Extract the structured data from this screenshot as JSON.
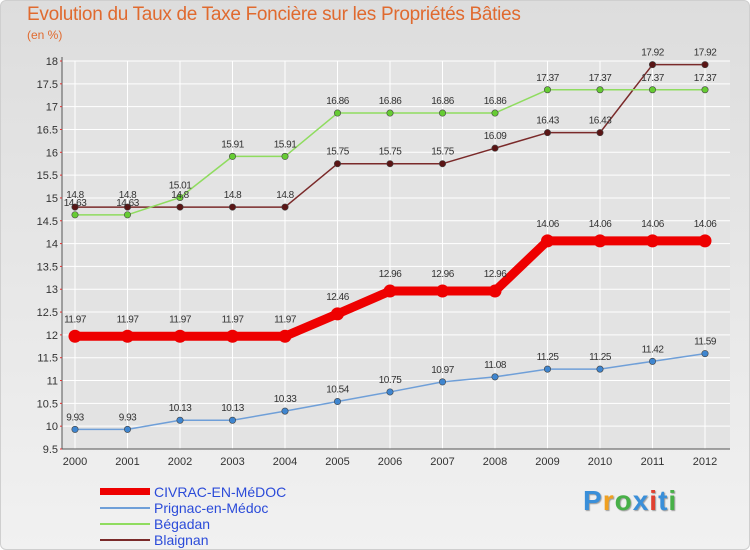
{
  "header": {
    "title": "Evolution du Taux de Taxe Foncière sur les Propriétés Bâties",
    "subtitle": "(en %)"
  },
  "colors": {
    "title": "#e06a2f",
    "legend_text": "#2b4bd9",
    "grid": "#ffffff",
    "axis_tick": "#e03030"
  },
  "chart_data": {
    "type": "line",
    "title": "Evolution du Taux de Taxe Foncière sur les Propriétés Bâties",
    "ylabel": "(en %)",
    "xlabel": "",
    "categories": [
      "2000",
      "2001",
      "2002",
      "2003",
      "2004",
      "2005",
      "2006",
      "2007",
      "2008",
      "2009",
      "2010",
      "2011",
      "2012"
    ],
    "ylim": [
      9.5,
      18
    ],
    "yticks": [
      "9.5",
      "10",
      "10.5",
      "11",
      "11.5",
      "12",
      "12.5",
      "13",
      "13.5",
      "14",
      "14.5",
      "15",
      "15.5",
      "16",
      "16.5",
      "17",
      "17.5",
      "18"
    ],
    "grid": true,
    "series": [
      {
        "name": "CIVRAC-EN-MéDOC",
        "color": "#ee0000",
        "marker": "#ee0000",
        "emphasis": "thick",
        "values": [
          11.97,
          11.97,
          11.97,
          11.97,
          11.97,
          12.46,
          12.96,
          12.96,
          12.96,
          14.06,
          14.06,
          14.06,
          14.06
        ],
        "labels": [
          "11.97",
          "11.97",
          "11.97",
          "11.97",
          "11.97",
          "12.46",
          "12.96",
          "12.96",
          "12.96",
          "14.06",
          "14.06",
          "14.06",
          "14.06"
        ]
      },
      {
        "name": "Prignac-en-Médoc",
        "color": "#6f9fd8",
        "marker": "#3f86d0",
        "emphasis": "thin",
        "values": [
          9.93,
          9.93,
          10.13,
          10.13,
          10.33,
          10.54,
          10.75,
          10.97,
          11.08,
          11.25,
          11.25,
          11.42,
          11.59
        ],
        "labels": [
          "9.93",
          "9.93",
          "10.13",
          "10.13",
          "10.33",
          "10.54",
          "10.75",
          "10.97",
          "11.08",
          "11.25",
          "11.25",
          "11.42",
          "11.59"
        ]
      },
      {
        "name": "Bégadan",
        "color": "#8fdc5f",
        "marker": "#66cc33",
        "emphasis": "thin",
        "values": [
          14.63,
          14.63,
          15.01,
          15.91,
          15.91,
          16.86,
          16.86,
          16.86,
          16.86,
          17.37,
          17.37,
          17.37,
          17.37
        ],
        "labels": [
          "14.63",
          "14.63",
          "15.01",
          "15.91",
          "15.91",
          "16.86",
          "16.86",
          "16.86",
          "16.86",
          "17.37",
          "17.37",
          "17.37",
          "17.37"
        ]
      },
      {
        "name": "Blaignan",
        "color": "#7a2a2a",
        "marker": "#5a1515",
        "emphasis": "thin",
        "values": [
          14.8,
          14.8,
          14.8,
          14.8,
          14.8,
          15.75,
          15.75,
          15.75,
          16.09,
          16.43,
          16.43,
          17.92,
          17.92
        ],
        "labels": [
          "14.8",
          "14.8",
          "14.8",
          "14.8",
          "14.8",
          "15.75",
          "15.75",
          "15.75",
          "16.09",
          "16.43",
          "16.43",
          "17.92",
          "17.92"
        ]
      }
    ]
  },
  "legend": {
    "items": [
      "CIVRAC-EN-MéDOC",
      "Prignac-en-Médoc",
      "Bégadan",
      "Blaignan"
    ]
  },
  "logo": {
    "letters": [
      "P",
      "r",
      "o",
      "x",
      "i",
      "t",
      "i"
    ],
    "colors": [
      "#3a8fd9",
      "#f0a020",
      "#48b048",
      "#3a8fd9",
      "#e04030",
      "#3a8fd9",
      "#48b048"
    ]
  }
}
